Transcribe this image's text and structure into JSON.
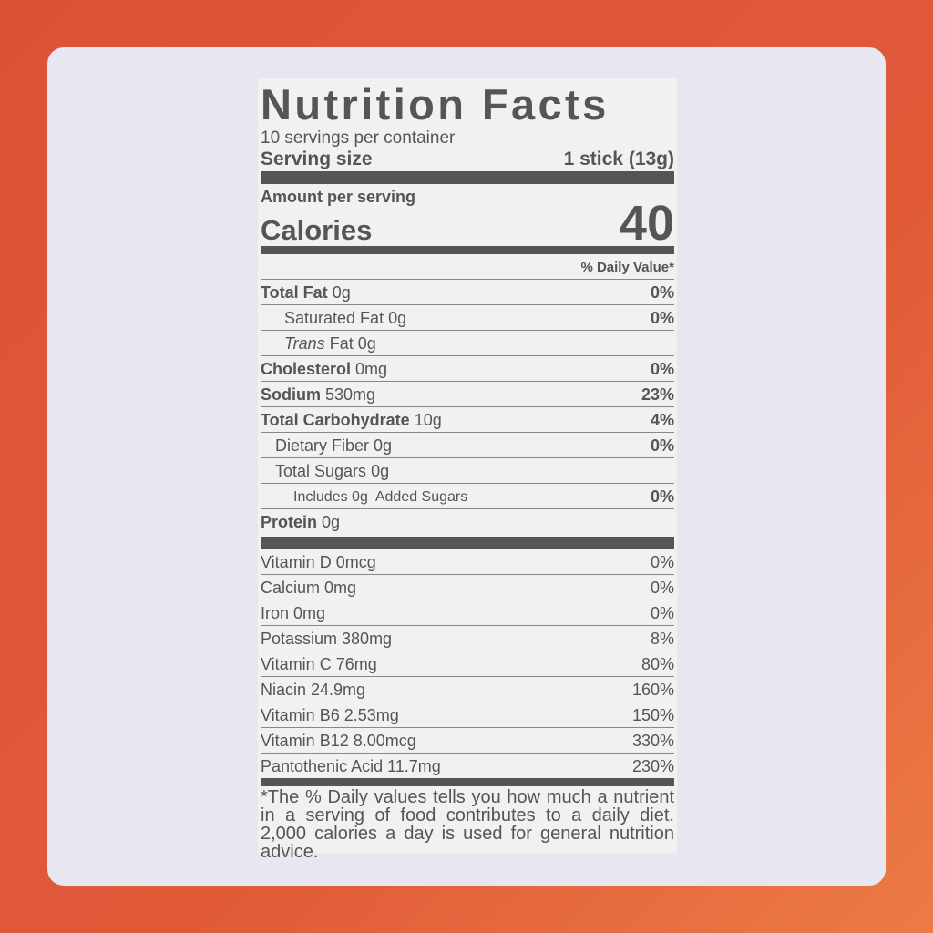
{
  "colors": {
    "background": "#dd5236",
    "card": "#e7e6f1",
    "label": "#f1f1f1",
    "text": "#555555"
  },
  "label": {
    "title": "Nutrition Facts",
    "servings_per_container": "10 servings per container",
    "serving_size_label": "Serving size",
    "serving_size_value": "1 stick (13g)",
    "amount_per_serving": "Amount per serving",
    "calories_label": "Calories",
    "calories_value": "40",
    "daily_value_header": "% Daily Value*",
    "nutrients": [
      {
        "name": "Total Fat",
        "amount": "0g",
        "dv": "0%"
      },
      {
        "name": "Saturated Fat",
        "amount": "0g",
        "dv": "0%"
      },
      {
        "name_italic": "Trans",
        "name": "Fat",
        "amount": "0g",
        "dv": ""
      },
      {
        "name": "Cholesterol",
        "amount": "0mg",
        "dv": "0%"
      },
      {
        "name": "Sodium",
        "amount": "530mg",
        "dv": "23%"
      },
      {
        "name": "Total Carbohydrate",
        "amount": "10g",
        "dv": "4%"
      },
      {
        "name": "Dietary Fiber",
        "amount": "0g",
        "dv": "0%"
      },
      {
        "name": "Total Sugars",
        "amount": "0g",
        "dv": ""
      },
      {
        "name": "Includes 0g  Added Sugars",
        "amount": "",
        "dv": "0%"
      },
      {
        "name": "Protein",
        "amount": "0g",
        "dv": ""
      }
    ],
    "vitamins": [
      {
        "text": "Vitamin D 0mcg",
        "dv": "0%"
      },
      {
        "text": "Calcium 0mg",
        "dv": "0%"
      },
      {
        "text": "Iron 0mg",
        "dv": "0%"
      },
      {
        "text": "Potassium 380mg",
        "dv": "8%"
      },
      {
        "text": "Vitamin C 76mg",
        "dv": "80%"
      },
      {
        "text": "Niacin 24.9mg",
        "dv": "160%"
      },
      {
        "text": "Vitamin B6 2.53mg",
        "dv": "150%"
      },
      {
        "text": "Vitamin B12 8.00mcg",
        "dv": "330%"
      },
      {
        "text": "Pantothenic Acid 11.7mg",
        "dv": "230%"
      }
    ],
    "footnote": "*The % Daily values tells you how much a nutrient in a serving of food contributes to a daily diet. 2,000 calories a day is used for general nutrition advice."
  }
}
